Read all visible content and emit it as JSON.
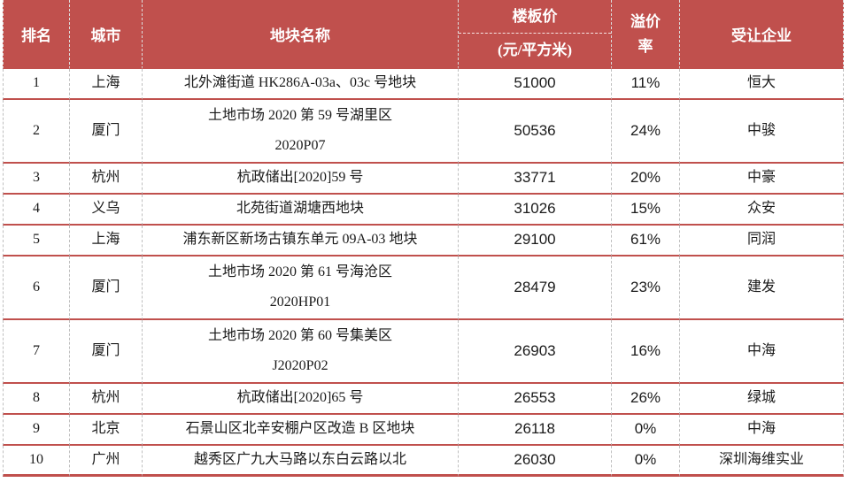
{
  "table": {
    "columns": {
      "rank": "排名",
      "city": "城市",
      "name": "地块名称",
      "price_line1": "楼板价",
      "price_line2": "(元/平方米)",
      "premium_line1": "溢价",
      "premium_line2": "率",
      "company": "受让企业"
    },
    "rows": [
      {
        "rank": "1",
        "city": "上海",
        "name_lines": [
          "北外滩街道 HK286A-03a、03c 号地块"
        ],
        "price": "51000",
        "premium": "11%",
        "company": "恒大"
      },
      {
        "rank": "2",
        "city": "厦门",
        "name_lines": [
          "土地市场 2020 第 59 号湖里区",
          "2020P07"
        ],
        "price": "50536",
        "premium": "24%",
        "company": "中骏"
      },
      {
        "rank": "3",
        "city": "杭州",
        "name_lines": [
          "杭政储出[2020]59 号"
        ],
        "price": "33771",
        "premium": "20%",
        "company": "中豪"
      },
      {
        "rank": "4",
        "city": "义乌",
        "name_lines": [
          "北苑街道湖塘西地块"
        ],
        "price": "31026",
        "premium": "15%",
        "company": "众安"
      },
      {
        "rank": "5",
        "city": "上海",
        "name_lines": [
          "浦东新区新场古镇东单元 09A-03 地块"
        ],
        "price": "29100",
        "premium": "61%",
        "company": "同润"
      },
      {
        "rank": "6",
        "city": "厦门",
        "name_lines": [
          "土地市场 2020 第 61 号海沧区",
          "2020HP01"
        ],
        "price": "28479",
        "premium": "23%",
        "company": "建发"
      },
      {
        "rank": "7",
        "city": "厦门",
        "name_lines": [
          "土地市场 2020 第 60 号集美区",
          "J2020P02"
        ],
        "price": "26903",
        "premium": "16%",
        "company": "中海"
      },
      {
        "rank": "8",
        "city": "杭州",
        "name_lines": [
          "杭政储出[2020]65 号"
        ],
        "price": "26553",
        "premium": "26%",
        "company": "绿城"
      },
      {
        "rank": "9",
        "city": "北京",
        "name_lines": [
          "石景山区北辛安棚户区改造 B 区地块"
        ],
        "price": "26118",
        "premium": "0%",
        "company": "中海"
      },
      {
        "rank": "10",
        "city": "广州",
        "name_lines": [
          "越秀区广九大马路以东白云路以北"
        ],
        "price": "26030",
        "premium": "0%",
        "company": "深圳海维实业"
      }
    ],
    "colors": {
      "header_bg": "#C0504D",
      "row_line": "#C0504D",
      "column_dash": "#BFBFBF",
      "body_text": "#1A1A1A",
      "header_text": "#FFFFFF"
    }
  }
}
